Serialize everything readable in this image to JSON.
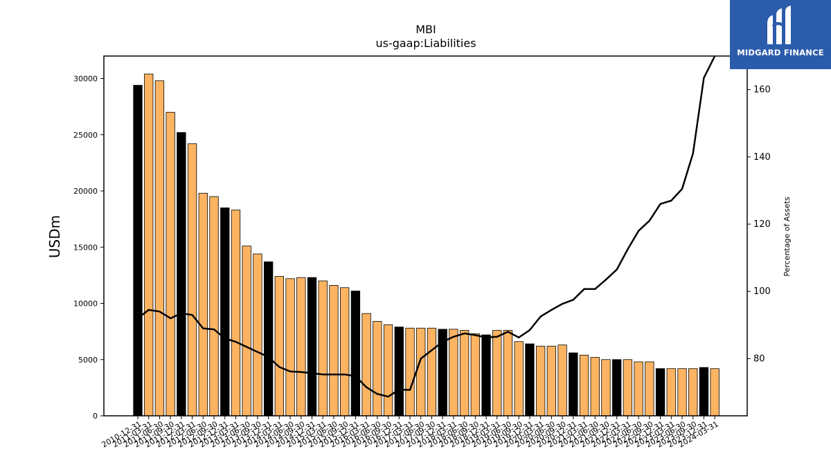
{
  "chart_data": {
    "type": "bar",
    "title": "MBI",
    "subtitle": "us-gaap:Liabilities",
    "ylabel": "USDm",
    "y2label": "Percentage of Assets",
    "ylim": [
      0,
      32000
    ],
    "y2lim": [
      63,
      170
    ],
    "yticks": [
      0,
      5000,
      10000,
      15000,
      20000,
      25000,
      30000
    ],
    "y2ticks": [
      80,
      100,
      120,
      140,
      160
    ],
    "grid": false,
    "colors": {
      "q4_bar": "#000000",
      "other_bar": "#fdb462",
      "line": "#000000",
      "bar_edge": "#000000"
    },
    "categories": [
      "2010-12-31",
      "2011-03-31",
      "2011-06-30",
      "2011-09-30",
      "2011-12-31",
      "2012-03-31",
      "2012-06-30",
      "2012-09-30",
      "2012-12-31",
      "2013-03-31",
      "2013-06-30",
      "2013-09-30",
      "2013-12-31",
      "2014-03-31",
      "2014-06-30",
      "2014-09-30",
      "2014-12-31",
      "2015-03-31",
      "2015-06-30",
      "2015-09-30",
      "2015-12-31",
      "2016-03-31",
      "2016-06-30",
      "2016-09-30",
      "2016-12-31",
      "2017-03-31",
      "2017-06-30",
      "2017-09-30",
      "2017-12-31",
      "2018-03-31",
      "2018-06-30",
      "2018-09-30",
      "2018-12-31",
      "2019-03-31",
      "2019-06-30",
      "2019-09-30",
      "2019-12-31",
      "2020-03-31",
      "2020-06-30",
      "2020-09-30",
      "2020-12-31",
      "2021-03-31",
      "2021-06-30",
      "2021-09-30",
      "2021-12-31",
      "2022-03-31",
      "2022-06-30",
      "2022-09-30",
      "2022-12-31",
      "2023-03-31",
      "2023-06-30",
      "2023-09-30",
      "2023-12-31",
      "2024-03-31"
    ],
    "series": [
      {
        "type": "bar",
        "values": [
          29400,
          30400,
          29800,
          27000,
          25200,
          24200,
          19800,
          19500,
          18500,
          18300,
          15100,
          14400,
          13700,
          12400,
          12200,
          12300,
          12300,
          12000,
          11600,
          11400,
          11100,
          9100,
          8400,
          8100,
          7900,
          7800,
          7800,
          7800,
          7700,
          7700,
          7600,
          7300,
          7200,
          7600,
          7600,
          6600,
          6400,
          6200,
          6200,
          6300,
          5600,
          5400,
          5200,
          5000,
          5000,
          5000,
          4800,
          4800,
          4200,
          4200,
          4200,
          4200,
          4300,
          4200
        ]
      },
      {
        "type": "line",
        "axis": "right",
        "values": [
          92,
          94.5,
          94,
          92,
          93.5,
          93,
          89,
          88.7,
          86,
          85,
          83.5,
          82,
          80.5,
          77.5,
          76.2,
          76,
          75.7,
          75.3,
          75.3,
          75.3,
          74.8,
          71.5,
          69.5,
          68.7,
          70.8,
          70.7,
          80,
          82.5,
          85,
          86.5,
          87.5,
          87,
          86.3,
          86.5,
          88,
          86.3,
          88.5,
          92.5,
          94.5,
          96.3,
          97.5,
          100.7,
          100.7,
          103.5,
          106.5,
          112.5,
          118,
          121,
          126,
          127,
          130.5,
          141,
          163.5,
          170
        ]
      }
    ]
  }
}
